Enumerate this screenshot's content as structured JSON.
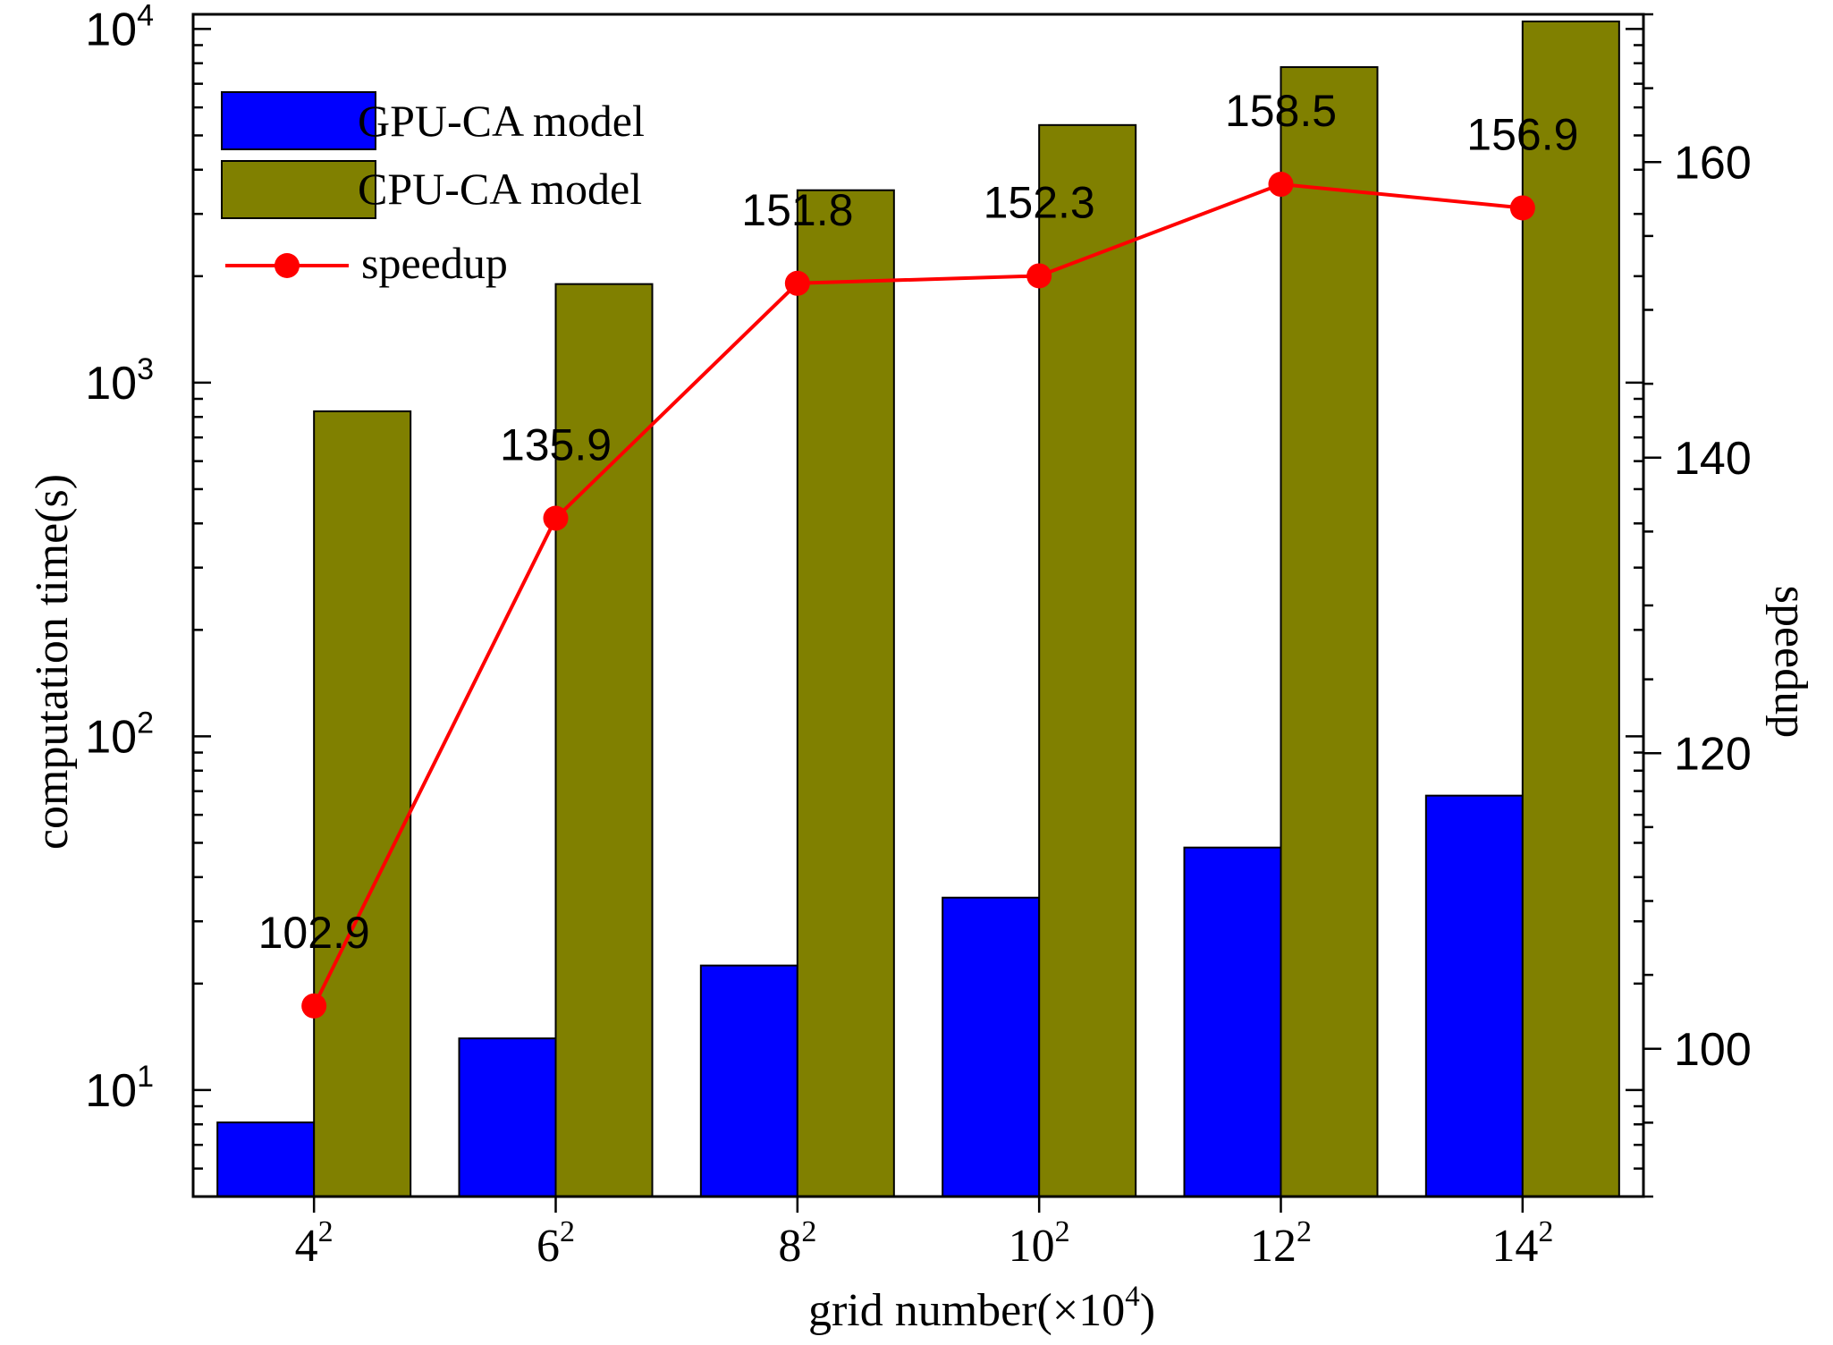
{
  "chart_data": {
    "type": "bar",
    "title": "",
    "categories": [
      "4",
      "6",
      "8",
      "10",
      "12",
      "14"
    ],
    "category_exponent": "2",
    "xlabel": "grid number(×10⁴)",
    "xlabel_parts": {
      "main": "grid number(×10",
      "sup": "4",
      "close": ")"
    },
    "ylabel": "computation time(s)",
    "y_scale": "log",
    "ylim": [
      5,
      11000
    ],
    "y_ticks": [
      {
        "base": "10",
        "exp": "1",
        "value": 10
      },
      {
        "base": "10",
        "exp": "2",
        "value": 100
      },
      {
        "base": "10",
        "exp": "3",
        "value": 1000
      },
      {
        "base": "10",
        "exp": "4",
        "value": 10000
      }
    ],
    "y2label": "speedup",
    "y2lim": [
      90,
      170
    ],
    "y2_ticks": [
      "100",
      "120",
      "140",
      "160"
    ],
    "series": [
      {
        "name": "GPU-CA model",
        "kind": "bar",
        "color": "#0000ff",
        "values": [
          8.1,
          14.0,
          22.5,
          35.0,
          48.5,
          68.0
        ]
      },
      {
        "name": "CPU-CA model",
        "kind": "bar",
        "color": "#808000",
        "values": [
          830,
          1900,
          3500,
          5350,
          7800,
          10500
        ]
      },
      {
        "name": "speedup",
        "kind": "line",
        "axis": "right",
        "color": "#ff0000",
        "values": [
          102.9,
          135.9,
          151.8,
          152.3,
          158.5,
          156.9
        ],
        "labels": [
          "102.9",
          "135.9",
          "151.8",
          "152.3",
          "158.5",
          "156.9"
        ]
      }
    ],
    "legend": {
      "position": "top-left"
    }
  }
}
